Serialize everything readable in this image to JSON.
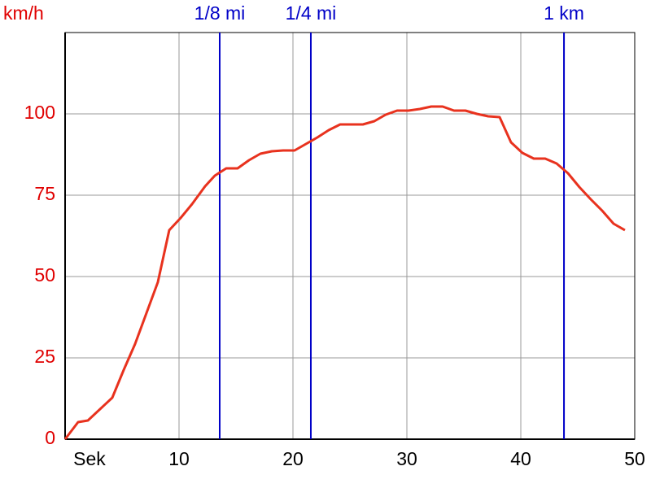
{
  "chart_data": {
    "type": "line",
    "x_label": "Sek",
    "y_label": "km/h",
    "xlim": [
      0,
      50
    ],
    "ylim": [
      0,
      125
    ],
    "xticks": [
      10,
      20,
      30,
      40,
      50
    ],
    "yticks": [
      0,
      25,
      50,
      75,
      100
    ],
    "grid": true,
    "y_label_color": "#e00000",
    "marker_color": "#0000c8",
    "markers": [
      {
        "label": "1/8 mi",
        "x": 13.57
      },
      {
        "label": "1/4 mi",
        "x": 21.57
      },
      {
        "label": "1 km",
        "x": 43.79
      }
    ],
    "x": [
      0,
      1.14,
      2,
      4.14,
      5.14,
      6.14,
      8.14,
      9.14,
      10.14,
      11.14,
      12.29,
      13.14,
      14.14,
      15.14,
      16.14,
      17.14,
      18.14,
      19.14,
      20.14,
      21.14,
      22.14,
      23.14,
      24.14,
      25.14,
      26.14,
      27.14,
      28.14,
      29.14,
      30.14,
      31.14,
      32.14,
      33.14,
      34.14,
      35.14,
      36.14,
      37.14,
      38.14,
      39.14,
      40.14,
      41.14,
      42.14,
      43.14,
      44.14,
      45.14,
      46.14,
      47.14,
      48.14,
      49.14
    ],
    "series": [
      {
        "color": "#e8321e",
        "values": [
          0,
          5.25,
          5.75,
          12.75,
          21.25,
          29.25,
          48.25,
          64.25,
          68,
          72.25,
          77.75,
          81,
          83.25,
          83.25,
          85.75,
          87.75,
          88.5,
          88.75,
          88.75,
          90.75,
          92.75,
          95,
          96.75,
          96.75,
          96.75,
          97.75,
          99.75,
          101,
          101,
          101.5,
          102.25,
          102.25,
          101,
          101,
          100,
          99.25,
          99,
          91.25,
          88,
          86.25,
          86.25,
          84.75,
          81.75,
          77.5,
          73.75,
          70.25,
          66.25,
          64.25
        ]
      }
    ]
  }
}
